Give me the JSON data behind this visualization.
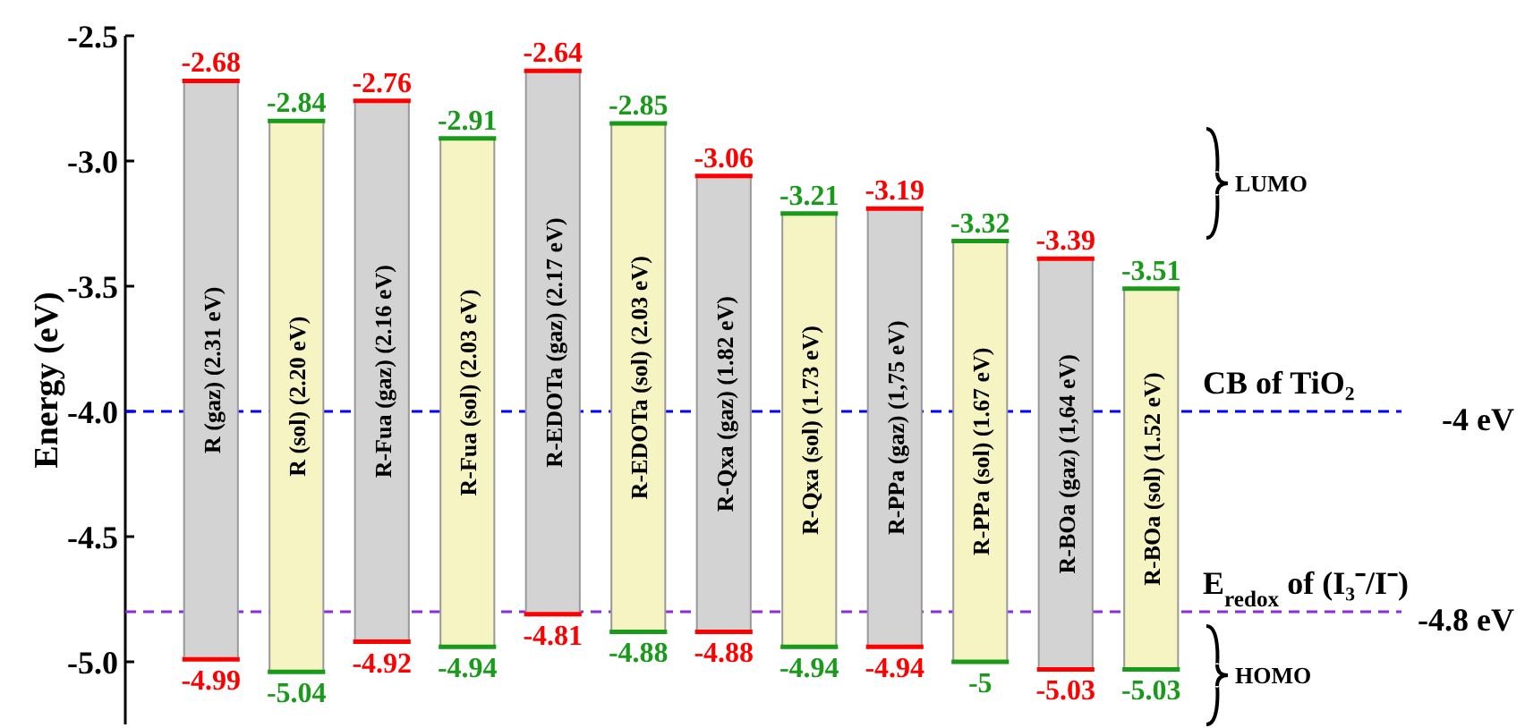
{
  "chart_data": {
    "type": "bar",
    "ylabel": "Energy (eV)",
    "categories": [
      "R (gaz) (2.31 eV)",
      "R (sol) (2.20 eV)",
      "R-Fua (gaz) (2.16 eV)",
      "R-Fua (sol) (2.03 eV)",
      "R-EDOTa (gaz) (2.17 eV)",
      "R-EDOTa (sol) (2.03 eV)",
      "R-Qxa (gaz) (1.82 eV)",
      "R-Qxa (sol) (1.73 eV)",
      "R-PPa (gaz) (1,75 eV)",
      "R-PPa (sol) (1.67 eV)",
      "R-BOa (gaz) (1,64 eV)",
      "R-BOa (sol) (1.52 eV)"
    ],
    "base": [
      -4.99,
      -5.04,
      -4.92,
      -4.94,
      -4.81,
      -4.88,
      -4.88,
      -4.94,
      -4.94,
      -5,
      -5.03,
      -5.03
    ],
    "values": [
      2.31,
      2.2,
      2.16,
      2.03,
      2.17,
      2.03,
      1.82,
      1.73,
      1.75,
      1.68,
      1.64,
      1.52
    ],
    "colors": [
      "#d3d3d3",
      "#f7f4c3",
      "#d3d3d3",
      "#f7f4c3",
      "#d3d3d3",
      "#f7f4c3",
      "#d3d3d3",
      "#f7f4c3",
      "#d3d3d3",
      "#f7f4c3",
      "#d3d3d3",
      "#f7f4c3"
    ],
    "ylim": [
      -5.25,
      -2.5
    ],
    "yticks": [
      -2.5,
      {
        "value": -3,
        "label": "-3.0"
      },
      -3.5,
      {
        "value": -4,
        "label": "-4.0"
      },
      -4.5,
      {
        "value": -5,
        "label": "-5.0"
      }
    ],
    "ref_lines": [
      {
        "axis": "y",
        "value": -4,
        "label": "CB of TiO₂",
        "color": "#0000ff",
        "line_style": "dashed"
      },
      {
        "axis": "y",
        "value": -4.8,
        "label": "E$_{redox}$ of (I₃⁻/I⁻)",
        "color": "#8b2be2",
        "line_style": "dashed"
      }
    ],
    "annotations": [
      {
        "text": "-2.68",
        "x": "R (gaz) (2.31 eV)",
        "y": -2.68
      },
      {
        "text": "-4.99",
        "x": "R (gaz) (2.31 eV)",
        "y": -4.99
      },
      {
        "text": "-2.84",
        "x": "R (sol) (2.20 eV)",
        "y": -2.84
      },
      {
        "text": "-5.04",
        "x": "R (sol) (2.20 eV)",
        "y": -5.04
      },
      {
        "text": "-2.76",
        "x": "R-Fua (gaz) (2.16 eV)",
        "y": -2.76
      },
      {
        "text": "-4.92",
        "x": "R-Fua (gaz) (2.16 eV)",
        "y": -4.92
      },
      {
        "text": "-2.91",
        "x": "R-Fua (sol) (2.03 eV)",
        "y": -2.91
      },
      {
        "text": "-4.94",
        "x": "R-Fua (sol) (2.03 eV)",
        "y": -4.94
      },
      {
        "text": "-2.64",
        "x": "R-EDOTa (gaz) (2.17 eV)",
        "y": -2.64
      },
      {
        "text": "-4.81",
        "x": "R-EDOTa (gaz) (2.17 eV)",
        "y": -4.81
      },
      {
        "text": "-2.85",
        "x": "R-EDOTa (sol) (2.03 eV)",
        "y": -2.85
      },
      {
        "text": "-4.88",
        "x": "R-EDOTa (sol) (2.03 eV)",
        "y": -4.88
      },
      {
        "text": "-3.06",
        "x": "R-Qxa (gaz) (1.82 eV)",
        "y": -3.06
      },
      {
        "text": "-4.88",
        "x": "R-Qxa (gaz) (1.82 eV)",
        "y": -4.88
      },
      {
        "text": "-3.21",
        "x": "R-Qxa (sol) (1.73 eV)",
        "y": -3.21
      },
      {
        "text": "-4.94",
        "x": "R-Qxa (sol) (1.73 eV)",
        "y": -4.94
      },
      {
        "text": "-3.19",
        "x": "R-PPa (gaz) (1,75 eV)",
        "y": -3.19
      },
      {
        "text": "-4.94",
        "x": "R-PPa (gaz) (1,75 eV)",
        "y": -4.94
      },
      {
        "text": "-3.32",
        "x": "R-PPa (sol) (1.67 eV)",
        "y": -3.32
      },
      {
        "text": "-5",
        "x": "R-PPa (sol) (1.67 eV)",
        "y": -5
      },
      {
        "text": "-3.39",
        "x": "R-BOa (gaz) (1,64 eV)",
        "y": -3.39
      },
      {
        "text": "-5.03",
        "x": "R-BOa (gaz) (1,64 eV)",
        "y": -5.03
      },
      {
        "text": "-3.51",
        "x": "R-BOa (sol) (1.52 eV)",
        "y": -3.51
      },
      {
        "text": "-5.03",
        "x": "R-BOa (sol) (1.52 eV)",
        "y": -5.03
      },
      "-4 eV",
      "-4.8 eV",
      "LUMO",
      "HOMO"
    ]
  }
}
